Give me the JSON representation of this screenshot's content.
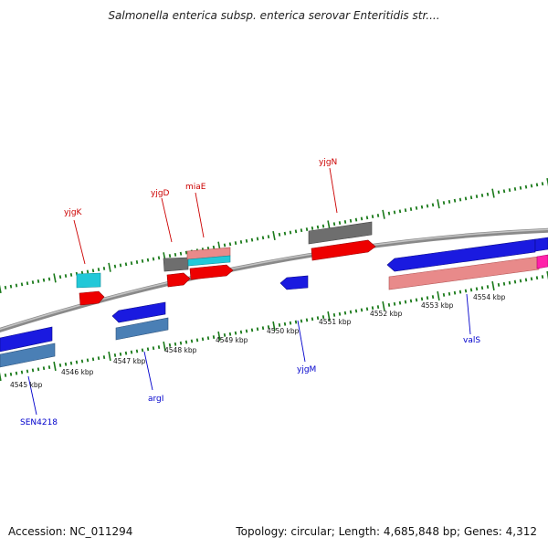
{
  "title": "Salmonella enterica subsp. enterica serovar Enteritidis str....",
  "accession": "Accession: NC_011294",
  "summary": "Topology: circular; Length: 4,685,848 bp; Genes: 4,312",
  "colors": {
    "backbone": "#8a8a8a",
    "forward_label": "#cc0000",
    "reverse_label": "#0000cc",
    "tick": "#1a7a1a",
    "cds_forward": "#ee0000",
    "cds_reverse": "#1a1ae0",
    "gray_feature": "#6e6e6e",
    "cyan_feature": "#22c8d8",
    "pink_feature": "#e88a8a",
    "steel_feature": "#4a7fb5",
    "magenta_feature": "#ff22aa"
  },
  "scale_labels": [
    "4545 kbp",
    "4546 kbp",
    "4547 kbp",
    "4548 kbp",
    "4549 kbp",
    "4550 kbp",
    "4551 kbp",
    "4552 kbp",
    "4553 kbp",
    "4554 kbp"
  ],
  "gene_labels": {
    "yjgK": "yjgK",
    "yjgD": "yjgD",
    "miaE": "miaE",
    "yjgN": "yjgN",
    "argI": "argI",
    "yjgM": "yjgM",
    "valS": "valS",
    "SEN4218": "SEN4218"
  }
}
